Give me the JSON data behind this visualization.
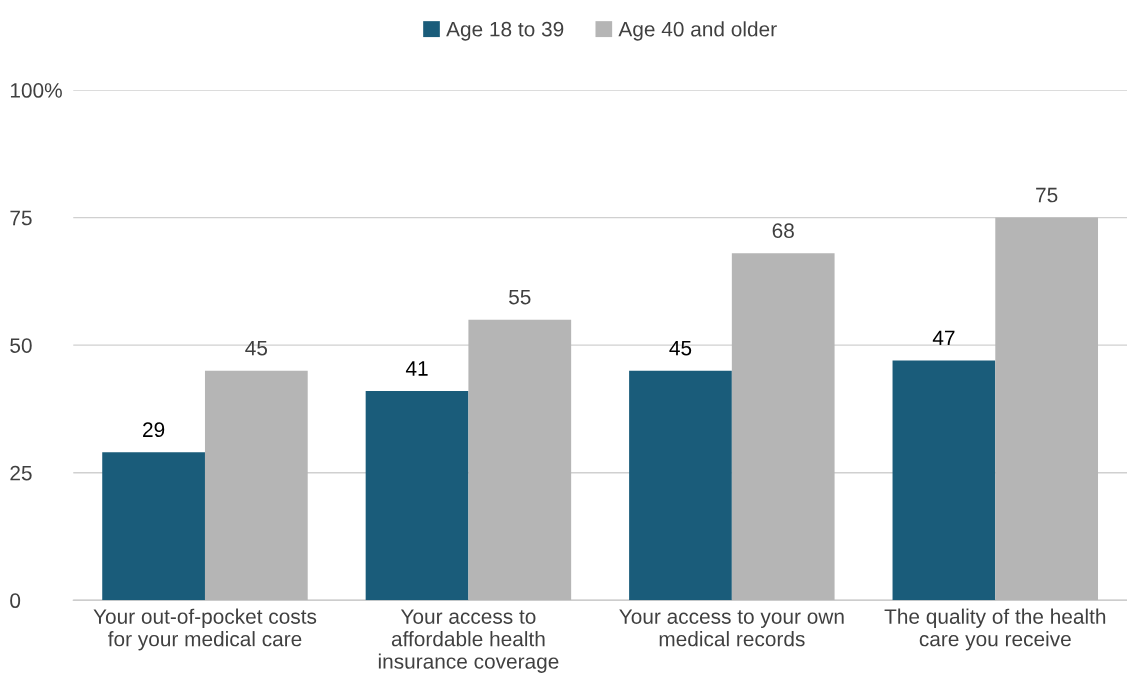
{
  "chart_data": {
    "type": "bar",
    "categories": [
      "Your out-of-pocket costs\nfor your medical care",
      "Your access to\naffordable health\ninsurance coverage",
      "Your access to your own\nmedical records",
      "The quality of the health\ncare you receive"
    ],
    "series": [
      {
        "name": "Age 18 to 39",
        "color": "#1a5c7a",
        "values": [
          29,
          41,
          45,
          47
        ]
      },
      {
        "name": "Age 40 and older",
        "color": "#b5b5b5",
        "values": [
          45,
          55,
          68,
          75
        ]
      }
    ],
    "ylim": [
      0,
      100
    ],
    "yticks": [
      0,
      25,
      50,
      75,
      {
        "value": 100,
        "label": "100%"
      }
    ],
    "grid": "y",
    "legend": "top",
    "data_labels": true
  }
}
